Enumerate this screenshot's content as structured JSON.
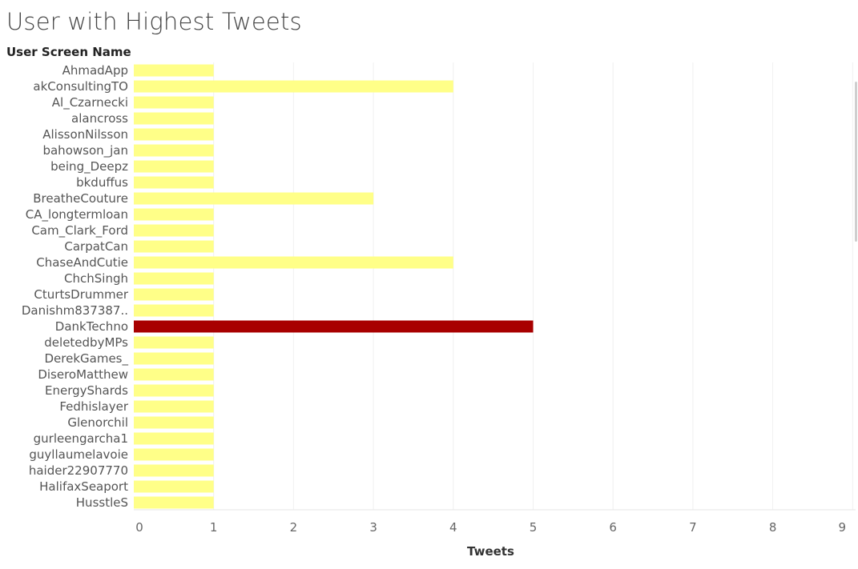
{
  "chart_data": {
    "type": "bar",
    "orientation": "horizontal",
    "title": "User with Highest Tweets",
    "row_header": "User Screen Name",
    "xlabel": "Tweets",
    "xlim": [
      0,
      9
    ],
    "x_ticks": [
      0,
      1,
      2,
      3,
      4,
      5,
      6,
      7,
      8,
      9
    ],
    "grid": true,
    "categories": [
      "AhmadApp",
      "akConsultingTO",
      "Al_Czarnecki",
      "alancross",
      "AlissonNilsson",
      "bahowson_jan",
      "being_Deepz",
      "bkduffus",
      "BreatheCouture",
      "CA_longtermloan",
      "Cam_Clark_Ford",
      "CarpatCan",
      "ChaseAndCutie",
      "ChchSingh",
      "CturtsDrummer",
      "Danishm837387..",
      "DankTechno",
      "deletedbyMPs",
      "DerekGames_",
      "DiseroMatthew",
      "EnergyShards",
      "Fedhislayer",
      "Glenorchil",
      "gurleengarcha1",
      "guyllaumelavoie",
      "haider22907770",
      "HalifaxSeaport",
      "HusstleS"
    ],
    "values": [
      1,
      4,
      1,
      1,
      1,
      1,
      1,
      1,
      3,
      1,
      1,
      1,
      4,
      1,
      1,
      1,
      5,
      1,
      1,
      1,
      1,
      1,
      1,
      1,
      1,
      1,
      1,
      1
    ],
    "colors": {
      "default": "#ffff88",
      "highlight": "#a80000"
    },
    "highlight_category": "DankTechno"
  }
}
